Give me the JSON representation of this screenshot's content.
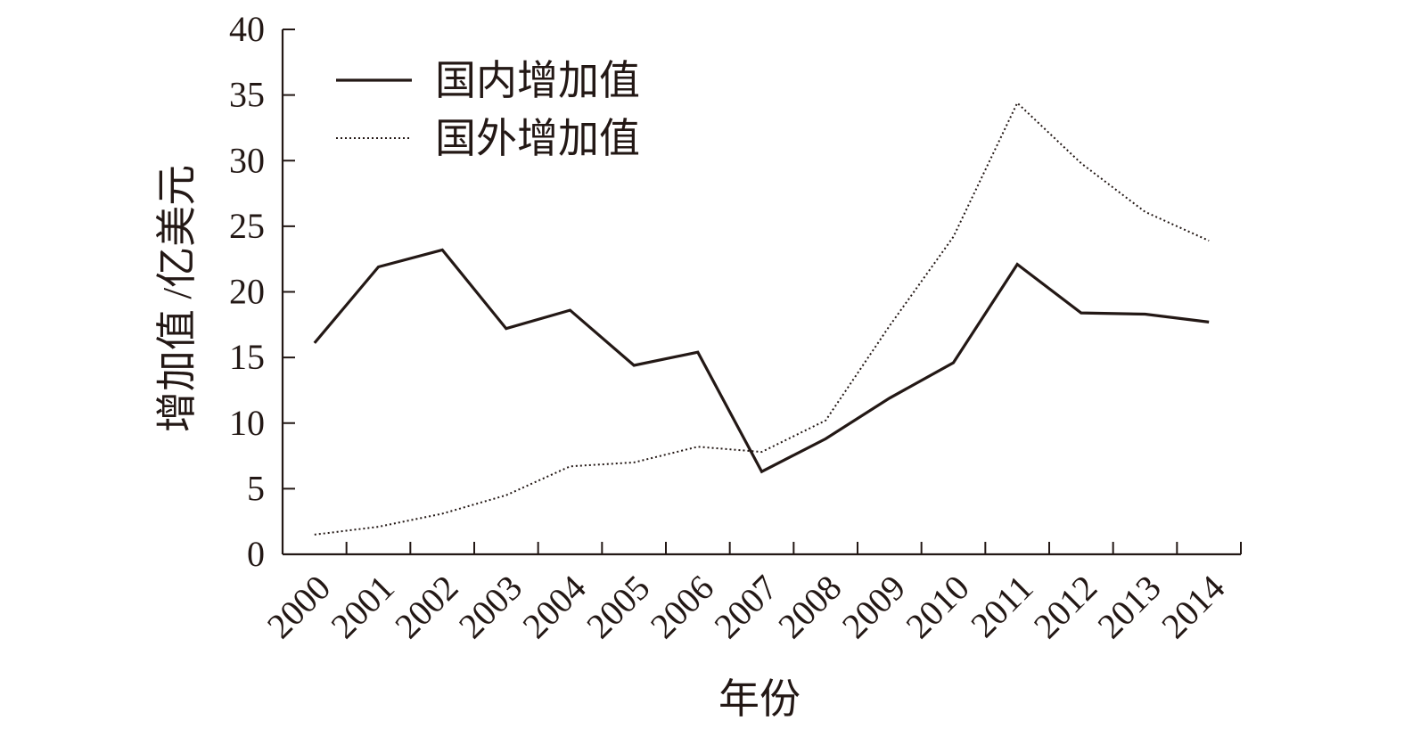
{
  "chart_data": {
    "type": "line",
    "xlabel": "年份",
    "ylabel": "增加值 /亿美元",
    "ylim": [
      0,
      40
    ],
    "yticks": [
      "0",
      "5",
      "10",
      "15",
      "20",
      "25",
      "30",
      "35",
      "40"
    ],
    "categories": [
      "2000",
      "2001",
      "2002",
      "2003",
      "2004",
      "2005",
      "2006",
      "2007",
      "2008",
      "2009",
      "2010",
      "2011",
      "2012",
      "2013",
      "2014"
    ],
    "grid": false,
    "legend_position": "top-left",
    "series": [
      {
        "name": "国内增加值",
        "style": "solid",
        "color": "#231815",
        "values": [
          16.1,
          21.9,
          23.2,
          17.2,
          18.6,
          14.4,
          15.4,
          6.3,
          8.8,
          11.9,
          14.6,
          22.1,
          18.4,
          18.3,
          17.7
        ]
      },
      {
        "name": "国外增加值",
        "style": "dotted",
        "color": "#231815",
        "values": [
          1.5,
          2.1,
          3.1,
          4.5,
          6.7,
          7.0,
          8.2,
          7.8,
          10.2,
          17.4,
          24.2,
          34.4,
          29.8,
          26.1,
          23.9
        ]
      }
    ]
  }
}
